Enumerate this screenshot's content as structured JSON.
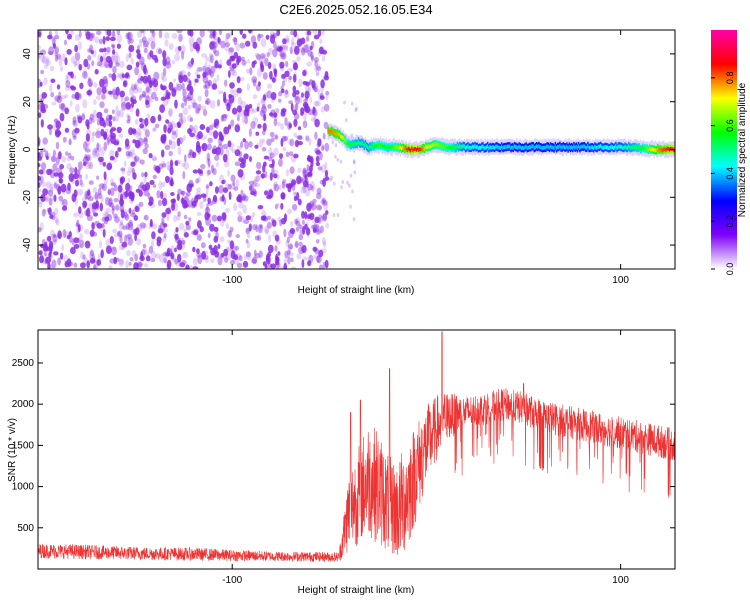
{
  "title": "C2E6.2025.052.16.05.E34",
  "chart_data": [
    {
      "type": "heatmap",
      "xlabel": "Height of straight line (km)",
      "ylabel": "Frequency (Hz)",
      "xlim": [
        -200,
        128
      ],
      "ylim": [
        -50,
        50
      ],
      "x_ticks": [
        -100,
        100
      ],
      "y_ticks": [
        -40,
        -20,
        0,
        20,
        40
      ],
      "colorbar": {
        "label": "Normalized spectral amplitude",
        "range": [
          0,
          1
        ],
        "ticks": [
          0,
          0.2,
          0.4,
          0.6,
          0.8
        ],
        "tick_labels": [
          "0.0",
          "0.2",
          "0.4",
          "0.6",
          "0.8"
        ],
        "colormap": [
          "#ffffff",
          "#7f00ff",
          "#0000ff",
          "#00ffff",
          "#00ff00",
          "#ffff00",
          "#ff0000",
          "#ff00aa"
        ]
      },
      "noise_region_x": [
        -200,
        -51
      ],
      "noise_color": "#8a2be2",
      "ridge": {
        "x": [
          -51,
          -45,
          -40,
          -35,
          -30,
          -25,
          -20,
          -15,
          -10,
          -5,
          0,
          5,
          10,
          20,
          40,
          60,
          80,
          100,
          110,
          120,
          128
        ],
        "freq": [
          8,
          6,
          2,
          3,
          1,
          2,
          1,
          1,
          0,
          0,
          1,
          2,
          1,
          1,
          1,
          1,
          1,
          1,
          0.5,
          0,
          0
        ],
        "amplitude": [
          0.8,
          0.75,
          0.55,
          0.5,
          0.5,
          0.6,
          0.55,
          0.65,
          0.85,
          0.9,
          0.7,
          0.65,
          0.6,
          0.45,
          0.4,
          0.4,
          0.4,
          0.45,
          0.55,
          0.8,
          0.9
        ]
      }
    },
    {
      "type": "line",
      "xlabel": "Height of straight line (km)",
      "ylabel": "SNR (10 * v/v)",
      "xlim": [
        -200,
        128
      ],
      "ylim": [
        0,
        2900
      ],
      "x_ticks": [
        -100,
        100
      ],
      "y_ticks": [
        500,
        1000,
        1500,
        2000,
        2500
      ],
      "color": "#ee3333",
      "envelope": {
        "x": [
          -200,
          -180,
          -150,
          -120,
          -100,
          -80,
          -60,
          -45,
          -40,
          -35,
          -30,
          -25,
          -20,
          -15,
          -10,
          -5,
          0,
          5,
          8,
          10,
          20,
          30,
          40,
          50,
          60,
          70,
          80,
          90,
          100,
          110,
          120,
          128
        ],
        "mean": [
          220,
          210,
          190,
          180,
          165,
          155,
          150,
          145,
          700,
          900,
          1100,
          1000,
          800,
          700,
          900,
          1200,
          1500,
          1700,
          1800,
          1850,
          1900,
          1950,
          2000,
          1950,
          1850,
          1800,
          1750,
          1700,
          1650,
          1600,
          1550,
          1500
        ],
        "spread": [
          90,
          90,
          80,
          80,
          70,
          60,
          60,
          60,
          500,
          600,
          700,
          700,
          600,
          600,
          700,
          600,
          500,
          400,
          400,
          300,
          200,
          200,
          200,
          200,
          200,
          200,
          200,
          200,
          200,
          200,
          200,
          200
        ]
      },
      "peaks": [
        {
          "x": -39,
          "y": 1900
        },
        {
          "x": -34,
          "y": 2050
        },
        {
          "x": -19,
          "y": 2430
        },
        {
          "x": 8,
          "y": 2880
        },
        {
          "x": 50,
          "y": 2250
        }
      ]
    }
  ]
}
